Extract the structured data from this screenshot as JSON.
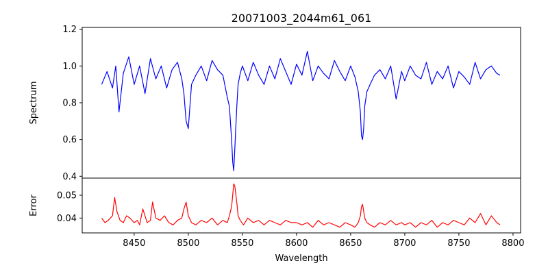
{
  "chart_data": [
    {
      "type": "line",
      "panel": "top",
      "title": "20071003_2044m61_061",
      "xlabel": "",
      "ylabel": "Spectrum",
      "xlim": [
        8402,
        8807
      ],
      "ylim": [
        0.39,
        1.21
      ],
      "yticks": [
        0.4,
        0.6,
        0.8,
        1.0,
        1.2
      ],
      "ytick_labels": [
        "0.4",
        "0.6",
        "0.8",
        "1.0",
        "1.2"
      ],
      "grid": false,
      "series": [
        {
          "color": "#0000ff",
          "x": [
            8420,
            8425,
            8430,
            8433,
            8436,
            8440,
            8445,
            8450,
            8455,
            8460,
            8465,
            8470,
            8475,
            8480,
            8485,
            8490,
            8494,
            8496,
            8498,
            8500,
            8503,
            8507,
            8512,
            8517,
            8522,
            8527,
            8532,
            8536,
            8538,
            8540,
            8541,
            8542,
            8543,
            8544,
            8545,
            8546,
            8548,
            8550,
            8555,
            8560,
            8565,
            8570,
            8575,
            8580,
            8585,
            8590,
            8595,
            8600,
            8605,
            8610,
            8615,
            8620,
            8625,
            8630,
            8635,
            8640,
            8645,
            8650,
            8654,
            8657,
            8659,
            8660,
            8661,
            8662,
            8663,
            8665,
            8668,
            8672,
            8677,
            8682,
            8687,
            8692,
            8697,
            8700,
            8705,
            8710,
            8715,
            8720,
            8725,
            8730,
            8735,
            8740,
            8745,
            8750,
            8755,
            8760,
            8765,
            8770,
            8775,
            8780,
            8785,
            8788
          ],
          "values": [
            0.9,
            0.97,
            0.88,
            1.0,
            0.75,
            0.96,
            1.05,
            0.9,
            1.0,
            0.85,
            1.04,
            0.93,
            1.0,
            0.88,
            0.98,
            1.02,
            0.93,
            0.85,
            0.7,
            0.66,
            0.9,
            0.95,
            1.0,
            0.92,
            1.03,
            0.98,
            0.95,
            0.83,
            0.78,
            0.6,
            0.48,
            0.43,
            0.55,
            0.68,
            0.8,
            0.9,
            0.96,
            1.0,
            0.92,
            1.02,
            0.95,
            0.9,
            1.0,
            0.93,
            1.04,
            0.97,
            0.9,
            1.01,
            0.95,
            1.08,
            0.92,
            1.0,
            0.96,
            0.93,
            1.03,
            0.97,
            0.92,
            1.0,
            0.94,
            0.86,
            0.75,
            0.62,
            0.6,
            0.66,
            0.78,
            0.86,
            0.9,
            0.95,
            0.98,
            0.93,
            1.0,
            0.82,
            0.97,
            0.92,
            1.0,
            0.95,
            0.93,
            1.02,
            0.9,
            0.97,
            0.93,
            1.0,
            0.88,
            0.97,
            0.94,
            0.9,
            1.02,
            0.93,
            0.98,
            1.0,
            0.96,
            0.95
          ]
        }
      ]
    },
    {
      "type": "line",
      "panel": "bottom",
      "title": "",
      "xlabel": "Wavelength",
      "ylabel": "Error",
      "xlim": [
        8402,
        8807
      ],
      "ylim": [
        0.0335,
        0.0575
      ],
      "xticks": [
        8450,
        8500,
        8550,
        8600,
        8650,
        8700,
        8750,
        8800
      ],
      "xtick_labels": [
        "8450",
        "8500",
        "8550",
        "8600",
        "8650",
        "8700",
        "8750",
        "8800"
      ],
      "yticks": [
        0.04,
        0.05
      ],
      "ytick_labels": [
        "0.04",
        "0.05"
      ],
      "grid": false,
      "series": [
        {
          "color": "#ff0000",
          "x": [
            8420,
            8423,
            8426,
            8430,
            8432,
            8434,
            8437,
            8440,
            8443,
            8446,
            8450,
            8453,
            8455,
            8458,
            8462,
            8465,
            8467,
            8470,
            8474,
            8478,
            8482,
            8486,
            8490,
            8494,
            8496,
            8498,
            8500,
            8503,
            8507,
            8512,
            8517,
            8522,
            8527,
            8532,
            8536,
            8538,
            8540,
            8541,
            8542,
            8543,
            8544,
            8545,
            8546,
            8548,
            8551,
            8555,
            8560,
            8565,
            8570,
            8575,
            8580,
            8585,
            8590,
            8595,
            8600,
            8605,
            8610,
            8615,
            8620,
            8625,
            8630,
            8635,
            8640,
            8645,
            8650,
            8654,
            8657,
            8659,
            8660,
            8661,
            8662,
            8663,
            8665,
            8668,
            8672,
            8677,
            8682,
            8687,
            8692,
            8697,
            8700,
            8705,
            8710,
            8715,
            8720,
            8725,
            8730,
            8735,
            8740,
            8745,
            8750,
            8755,
            8760,
            8765,
            8770,
            8775,
            8780,
            8785,
            8788
          ],
          "values": [
            0.04,
            0.038,
            0.039,
            0.041,
            0.049,
            0.043,
            0.039,
            0.038,
            0.041,
            0.04,
            0.038,
            0.039,
            0.037,
            0.044,
            0.038,
            0.039,
            0.047,
            0.04,
            0.039,
            0.041,
            0.038,
            0.037,
            0.039,
            0.04,
            0.044,
            0.047,
            0.041,
            0.038,
            0.037,
            0.039,
            0.038,
            0.04,
            0.037,
            0.039,
            0.038,
            0.041,
            0.045,
            0.05,
            0.055,
            0.054,
            0.05,
            0.046,
            0.041,
            0.039,
            0.037,
            0.04,
            0.038,
            0.039,
            0.037,
            0.039,
            0.038,
            0.037,
            0.039,
            0.038,
            0.038,
            0.037,
            0.038,
            0.036,
            0.039,
            0.037,
            0.038,
            0.037,
            0.036,
            0.038,
            0.037,
            0.036,
            0.038,
            0.041,
            0.045,
            0.046,
            0.043,
            0.04,
            0.038,
            0.037,
            0.036,
            0.038,
            0.037,
            0.039,
            0.037,
            0.038,
            0.037,
            0.038,
            0.036,
            0.038,
            0.037,
            0.039,
            0.036,
            0.038,
            0.037,
            0.039,
            0.038,
            0.037,
            0.04,
            0.038,
            0.042,
            0.037,
            0.041,
            0.038,
            0.037
          ]
        }
      ]
    }
  ]
}
